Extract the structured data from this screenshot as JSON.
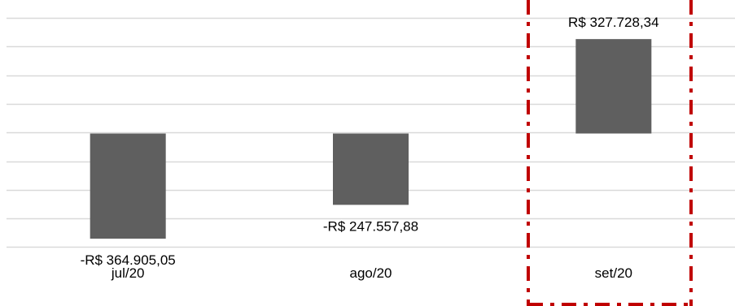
{
  "chart_data": {
    "type": "bar",
    "categories": [
      "jul/20",
      "ago/20",
      "set/20"
    ],
    "values": [
      -364905.05,
      -247557.88,
      327728.34
    ],
    "data_labels": [
      "-R$ 364.905,05",
      "-R$ 247.557,88",
      "R$ 327.728,34"
    ],
    "title": "",
    "xlabel": "",
    "ylabel": "",
    "ylim": [
      -400000,
      450000
    ],
    "grid": true,
    "legend": "none",
    "highlight": {
      "category": "set/20",
      "style": "dash-dot",
      "color": "#c00000"
    },
    "colors": {
      "bar": "#5f5f5f",
      "grid": "#d9d9d9",
      "text": "#000000"
    }
  }
}
